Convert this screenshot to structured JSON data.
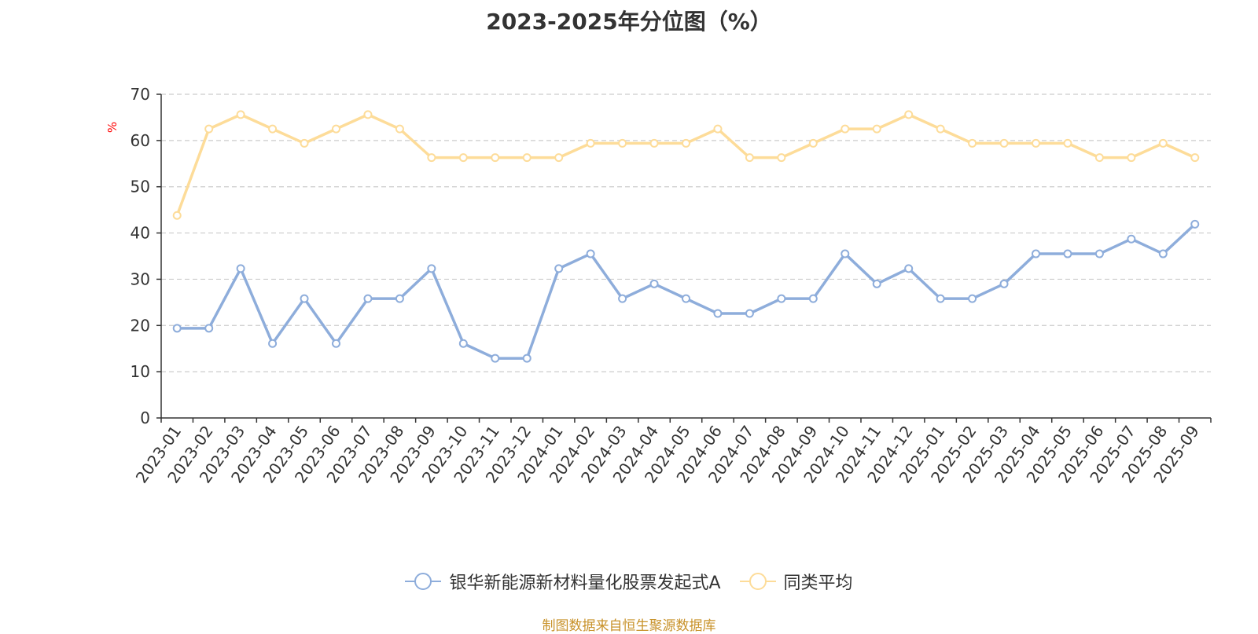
{
  "chart_data": {
    "type": "line",
    "title": "2023-2025年分位图（%）",
    "ylabel": "%",
    "xlabel": "",
    "ylim": [
      0,
      70
    ],
    "yticks": [
      0,
      10,
      20,
      30,
      40,
      50,
      60,
      70
    ],
    "grid": true,
    "legend_position": "bottom",
    "categories": [
      "2023-01",
      "2023-02",
      "2023-03",
      "2023-04",
      "2023-05",
      "2023-06",
      "2023-07",
      "2023-08",
      "2023-09",
      "2023-10",
      "2023-11",
      "2023-12",
      "2024-01",
      "2024-02",
      "2024-03",
      "2024-04",
      "2024-05",
      "2024-06",
      "2024-07",
      "2024-08",
      "2024-09",
      "2024-10",
      "2024-11",
      "2024-12",
      "2025-01",
      "2025-02",
      "2025-03",
      "2025-04",
      "2025-05",
      "2025-06",
      "2025-07",
      "2025-08",
      "2025-09"
    ],
    "series": [
      {
        "name": "银华新能源新材料量化股票发起式A",
        "color": "#8eaddb",
        "values": [
          19.4,
          19.4,
          32.3,
          16.1,
          25.8,
          16.1,
          25.8,
          25.8,
          32.3,
          16.1,
          12.9,
          12.9,
          32.3,
          35.5,
          25.8,
          29.0,
          25.8,
          22.6,
          22.6,
          25.8,
          25.8,
          35.5,
          29.0,
          32.3,
          25.8,
          25.8,
          29.0,
          35.5,
          35.5,
          35.5,
          38.7,
          35.5,
          41.9
        ]
      },
      {
        "name": "同类平均",
        "color": "#fddc99",
        "values": [
          43.8,
          62.5,
          65.6,
          62.5,
          59.4,
          62.5,
          65.6,
          62.5,
          56.3,
          56.3,
          56.3,
          56.3,
          56.3,
          59.4,
          59.4,
          59.4,
          59.4,
          62.5,
          56.3,
          56.3,
          59.4,
          62.5,
          62.5,
          65.6,
          62.5,
          59.4,
          59.4,
          59.4,
          59.4,
          56.3,
          56.3,
          59.4,
          56.3
        ]
      }
    ],
    "axis_color": "#333333",
    "grid_color": "#cccccc",
    "unit_color": "#ff0000"
  },
  "source_text": "制图数据来自恒生聚源数据库"
}
